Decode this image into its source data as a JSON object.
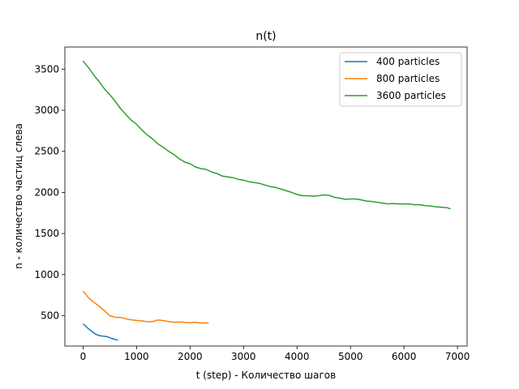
{
  "chart_data": {
    "type": "line",
    "title": "n(t)",
    "xlabel": "t (step) - Количество шагов",
    "ylabel": "n - количество частиц слева",
    "xlim": [
      -340,
      7180
    ],
    "ylim": [
      130,
      3770
    ],
    "xticks": [
      0,
      1000,
      2000,
      3000,
      4000,
      5000,
      6000,
      7000
    ],
    "yticks": [
      500,
      1000,
      1500,
      2000,
      2500,
      3000,
      3500
    ],
    "grid": false,
    "legend_position": "top-right",
    "series": [
      {
        "name": "400 particles",
        "color": "#1f77b4",
        "x": [
          0,
          40,
          80,
          120,
          160,
          200,
          250,
          300,
          350,
          400,
          450,
          500,
          550,
          600,
          650
        ],
        "y": [
          400,
          378,
          352,
          332,
          312,
          290,
          270,
          258,
          252,
          248,
          244,
          232,
          220,
          210,
          203
        ]
      },
      {
        "name": "800 particles",
        "color": "#ff7f0e",
        "x": [
          0,
          50,
          100,
          150,
          200,
          300,
          400,
          500,
          600,
          700,
          800,
          900,
          1000,
          1100,
          1200,
          1300,
          1400,
          1500,
          1600,
          1700,
          1800,
          1900,
          2000,
          2100,
          2200,
          2300,
          2350
        ],
        "y": [
          800,
          760,
          720,
          690,
          665,
          615,
          560,
          500,
          480,
          478,
          462,
          450,
          442,
          436,
          426,
          428,
          448,
          440,
          428,
          420,
          424,
          418,
          414,
          420,
          410,
          414,
          404
        ]
      },
      {
        "name": "3600 particles",
        "color": "#2ca02c",
        "x": [
          0,
          100,
          200,
          300,
          400,
          500,
          600,
          700,
          800,
          900,
          1000,
          1100,
          1200,
          1300,
          1400,
          1500,
          1600,
          1700,
          1800,
          1900,
          2000,
          2100,
          2200,
          2300,
          2400,
          2500,
          2600,
          2700,
          2800,
          2900,
          3000,
          3100,
          3200,
          3300,
          3400,
          3500,
          3600,
          3700,
          3800,
          3900,
          4000,
          4100,
          4200,
          4300,
          4400,
          4500,
          4600,
          4700,
          4800,
          4900,
          5000,
          5100,
          5200,
          5300,
          5400,
          5500,
          5600,
          5700,
          5800,
          5900,
          6000,
          6100,
          6200,
          6300,
          6400,
          6500,
          6600,
          6700,
          6800,
          6870
        ],
        "y": [
          3600,
          3520,
          3430,
          3350,
          3260,
          3190,
          3110,
          3020,
          2950,
          2880,
          2830,
          2760,
          2700,
          2650,
          2590,
          2550,
          2500,
          2460,
          2410,
          2370,
          2350,
          2310,
          2290,
          2280,
          2250,
          2230,
          2200,
          2190,
          2180,
          2160,
          2150,
          2130,
          2120,
          2110,
          2090,
          2070,
          2060,
          2040,
          2020,
          2000,
          1975,
          1960,
          1960,
          1955,
          1960,
          1970,
          1965,
          1940,
          1930,
          1915,
          1920,
          1920,
          1910,
          1895,
          1890,
          1880,
          1870,
          1860,
          1865,
          1860,
          1860,
          1860,
          1850,
          1850,
          1840,
          1835,
          1825,
          1820,
          1815,
          1800
        ]
      }
    ]
  }
}
